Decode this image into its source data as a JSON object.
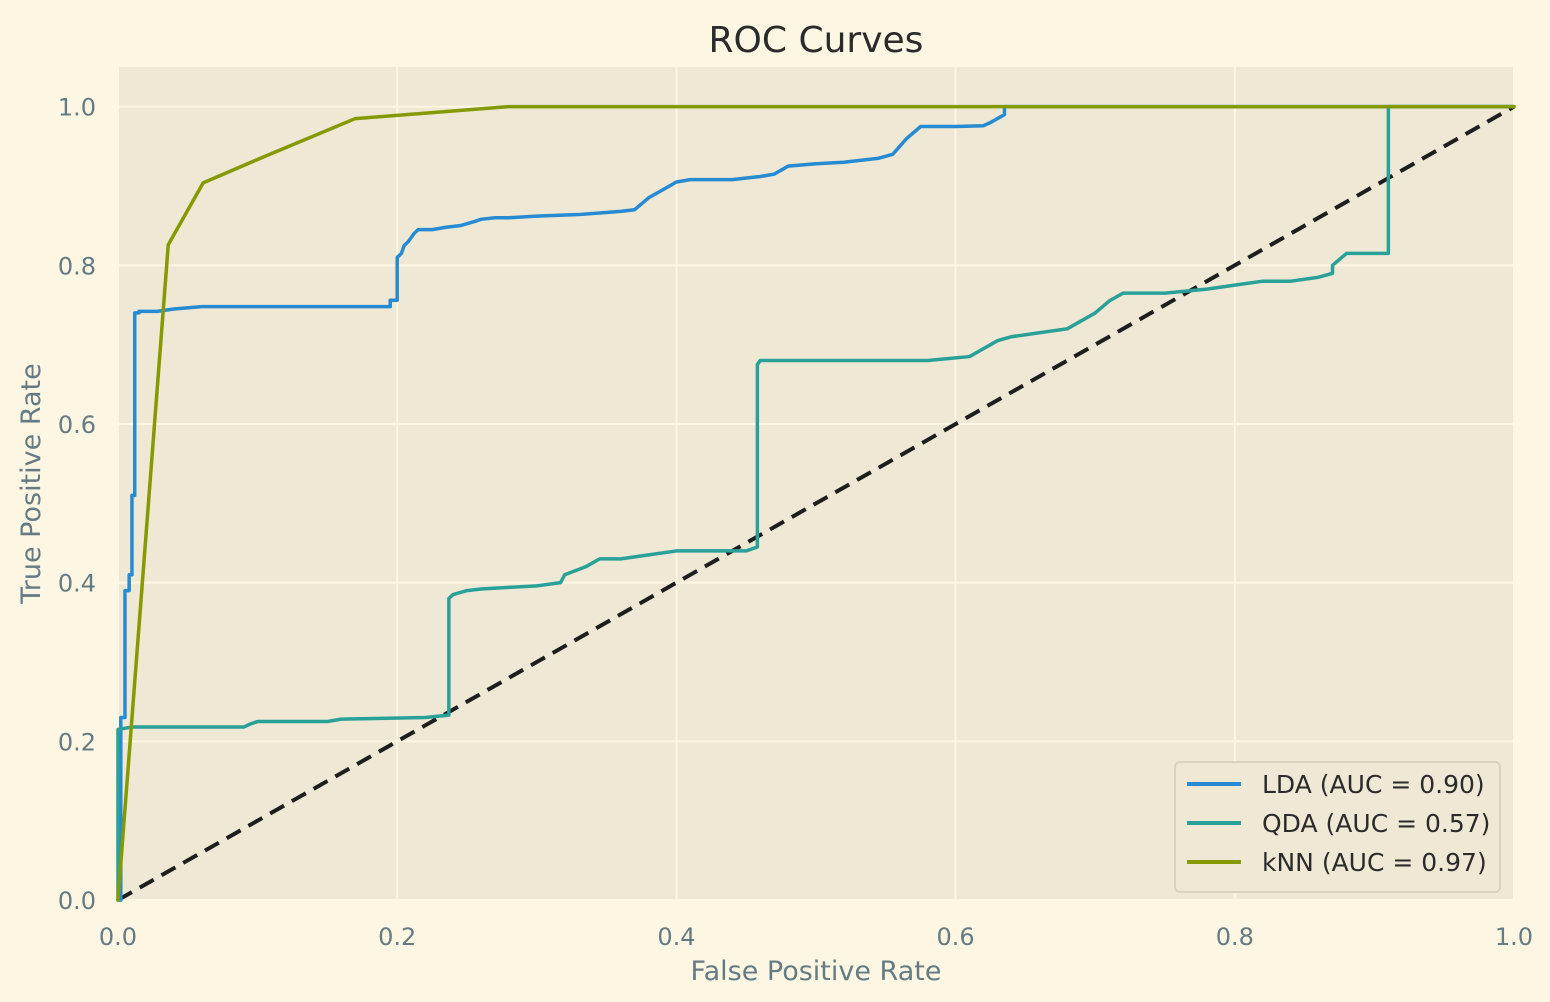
{
  "colors": {
    "figure_bg": "#fdf6e3",
    "axes_bg": "#eee8d5",
    "grid": "#fdf6e3",
    "text": "#657b83",
    "title_text": "#2b2b2b",
    "legend_bg": "#eee8d5",
    "legend_edge": "#d9d2bf",
    "diagonal": "#1e1e1e"
  },
  "chart_data": {
    "type": "line",
    "title": "ROC Curves",
    "xlabel": "False Positive Rate",
    "ylabel": "True Positive Rate",
    "xlim": [
      0.0,
      1.0
    ],
    "ylim": [
      0.0,
      1.05
    ],
    "xticks": [
      0.0,
      0.2,
      0.4,
      0.6,
      0.8,
      1.0
    ],
    "xtick_labels": [
      "0.0",
      "0.2",
      "0.4",
      "0.6",
      "0.8",
      "1.0"
    ],
    "yticks": [
      0.0,
      0.2,
      0.4,
      0.6,
      0.8,
      1.0
    ],
    "ytick_labels": [
      "0.0",
      "0.2",
      "0.4",
      "0.6",
      "0.8",
      "1.0"
    ],
    "grid": true,
    "legend_position": "lower-right",
    "diagonal": {
      "x": [
        0.0,
        1.0
      ],
      "y": [
        0.0,
        1.0
      ],
      "style": "dashed"
    },
    "series": [
      {
        "name": "LDA (AUC = 0.90)",
        "color": "#268bd2",
        "x": [
          0.0,
          0.002,
          0.002,
          0.005,
          0.005,
          0.008,
          0.008,
          0.01,
          0.01,
          0.012,
          0.012,
          0.015,
          0.015,
          0.02,
          0.028,
          0.04,
          0.06,
          0.1,
          0.15,
          0.195,
          0.195,
          0.2,
          0.2,
          0.203,
          0.205,
          0.208,
          0.212,
          0.215,
          0.225,
          0.235,
          0.245,
          0.255,
          0.26,
          0.27,
          0.28,
          0.3,
          0.33,
          0.345,
          0.36,
          0.37,
          0.38,
          0.39,
          0.4,
          0.41,
          0.44,
          0.46,
          0.47,
          0.48,
          0.5,
          0.52,
          0.53,
          0.545,
          0.555,
          0.56,
          0.565,
          0.575,
          0.6,
          0.62,
          0.625,
          0.63,
          0.635,
          0.635,
          0.64,
          0.66,
          0.7,
          0.8,
          0.9,
          1.0
        ],
        "y": [
          0.0,
          0.0,
          0.23,
          0.23,
          0.39,
          0.39,
          0.41,
          0.41,
          0.51,
          0.51,
          0.74,
          0.74,
          0.742,
          0.742,
          0.742,
          0.745,
          0.748,
          0.748,
          0.748,
          0.748,
          0.756,
          0.756,
          0.81,
          0.815,
          0.825,
          0.83,
          0.84,
          0.845,
          0.845,
          0.848,
          0.85,
          0.855,
          0.858,
          0.86,
          0.86,
          0.862,
          0.864,
          0.866,
          0.868,
          0.87,
          0.885,
          0.895,
          0.905,
          0.908,
          0.908,
          0.912,
          0.915,
          0.925,
          0.928,
          0.93,
          0.932,
          0.935,
          0.94,
          0.95,
          0.96,
          0.975,
          0.975,
          0.976,
          0.98,
          0.985,
          0.99,
          1.0,
          1.0,
          1.0,
          1.0,
          1.0,
          1.0,
          1.0
        ]
      },
      {
        "name": "QDA (AUC = 0.57)",
        "color": "#2aa198",
        "x": [
          0.0,
          0.0,
          0.01,
          0.09,
          0.095,
          0.1,
          0.15,
          0.16,
          0.22,
          0.237,
          0.237,
          0.24,
          0.25,
          0.26,
          0.28,
          0.3,
          0.317,
          0.32,
          0.335,
          0.345,
          0.36,
          0.4,
          0.41,
          0.45,
          0.458,
          0.458,
          0.46,
          0.48,
          0.5,
          0.52,
          0.55,
          0.58,
          0.61,
          0.62,
          0.625,
          0.63,
          0.64,
          0.66,
          0.68,
          0.7,
          0.71,
          0.72,
          0.75,
          0.78,
          0.8,
          0.82,
          0.84,
          0.86,
          0.87,
          0.87,
          0.88,
          0.91,
          0.91,
          0.95,
          1.0
        ],
        "y": [
          0.0,
          0.215,
          0.218,
          0.218,
          0.222,
          0.225,
          0.225,
          0.228,
          0.23,
          0.233,
          0.38,
          0.385,
          0.39,
          0.392,
          0.394,
          0.396,
          0.4,
          0.41,
          0.42,
          0.43,
          0.43,
          0.44,
          0.44,
          0.44,
          0.445,
          0.675,
          0.68,
          0.68,
          0.68,
          0.68,
          0.68,
          0.68,
          0.685,
          0.695,
          0.7,
          0.705,
          0.71,
          0.715,
          0.72,
          0.74,
          0.755,
          0.765,
          0.765,
          0.77,
          0.775,
          0.78,
          0.78,
          0.785,
          0.79,
          0.8,
          0.815,
          0.815,
          1.0,
          1.0,
          1.0
        ]
      },
      {
        "name": "kNN (AUC = 0.97)",
        "color": "#859900",
        "x": [
          0.0,
          0.036,
          0.061,
          0.102,
          0.17,
          0.28,
          1.0
        ],
        "y": [
          0.0,
          0.826,
          0.904,
          0.935,
          0.985,
          1.0,
          1.0
        ]
      }
    ]
  }
}
